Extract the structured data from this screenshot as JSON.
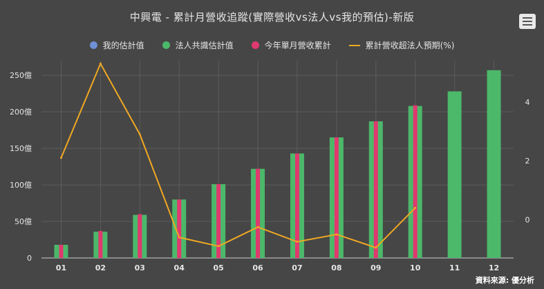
{
  "title": "中興電 - 累計月營收追蹤(實際營收vs法人vs我的預估)-新版",
  "source": "資料來源: 優分析",
  "menu_icon": "hamburger-menu-icon",
  "legend": [
    {
      "label": "我的估計值",
      "color": "#6f8fd6",
      "shape": "dot"
    },
    {
      "label": "法人共識估計值",
      "color": "#4cb86a",
      "shape": "dot"
    },
    {
      "label": "今年單月營收累計",
      "color": "#e0396f",
      "shape": "dot"
    },
    {
      "label": "累計營收超法人預期(%)",
      "color": "#f0a823",
      "shape": "line"
    }
  ],
  "chart_data": {
    "type": "bar",
    "categories": [
      "01",
      "02",
      "03",
      "04",
      "05",
      "06",
      "07",
      "08",
      "09",
      "10",
      "11",
      "12"
    ],
    "y_left": {
      "ticks": [
        "0",
        "50億",
        "100億",
        "150億",
        "200億",
        "250億"
      ],
      "range": [
        0,
        270
      ],
      "unit": "億"
    },
    "y_right": {
      "ticks": [
        "0",
        "2",
        "4"
      ],
      "range": [
        -1.3,
        5.4
      ]
    },
    "grid": true,
    "legend_position": "top",
    "series": [
      {
        "name": "法人共識估計值",
        "type": "bar",
        "color": "#4cb86a",
        "axis": "left",
        "values": [
          18,
          36,
          59,
          80,
          101,
          122,
          143,
          165,
          187,
          208,
          228,
          257
        ]
      },
      {
        "name": "今年單月營收累計",
        "type": "bar",
        "color": "#e0396f",
        "axis": "left",
        "values": [
          18,
          37,
          60,
          80,
          101,
          122,
          143,
          165,
          187,
          209,
          null,
          null
        ]
      },
      {
        "name": "累計營收超法人預期(%)",
        "type": "line",
        "color": "#f0a823",
        "axis": "right",
        "values": [
          2.1,
          5.3,
          2.9,
          -0.6,
          -0.9,
          -0.25,
          -0.75,
          -0.5,
          -0.95,
          0.4,
          null,
          null
        ]
      }
    ]
  }
}
